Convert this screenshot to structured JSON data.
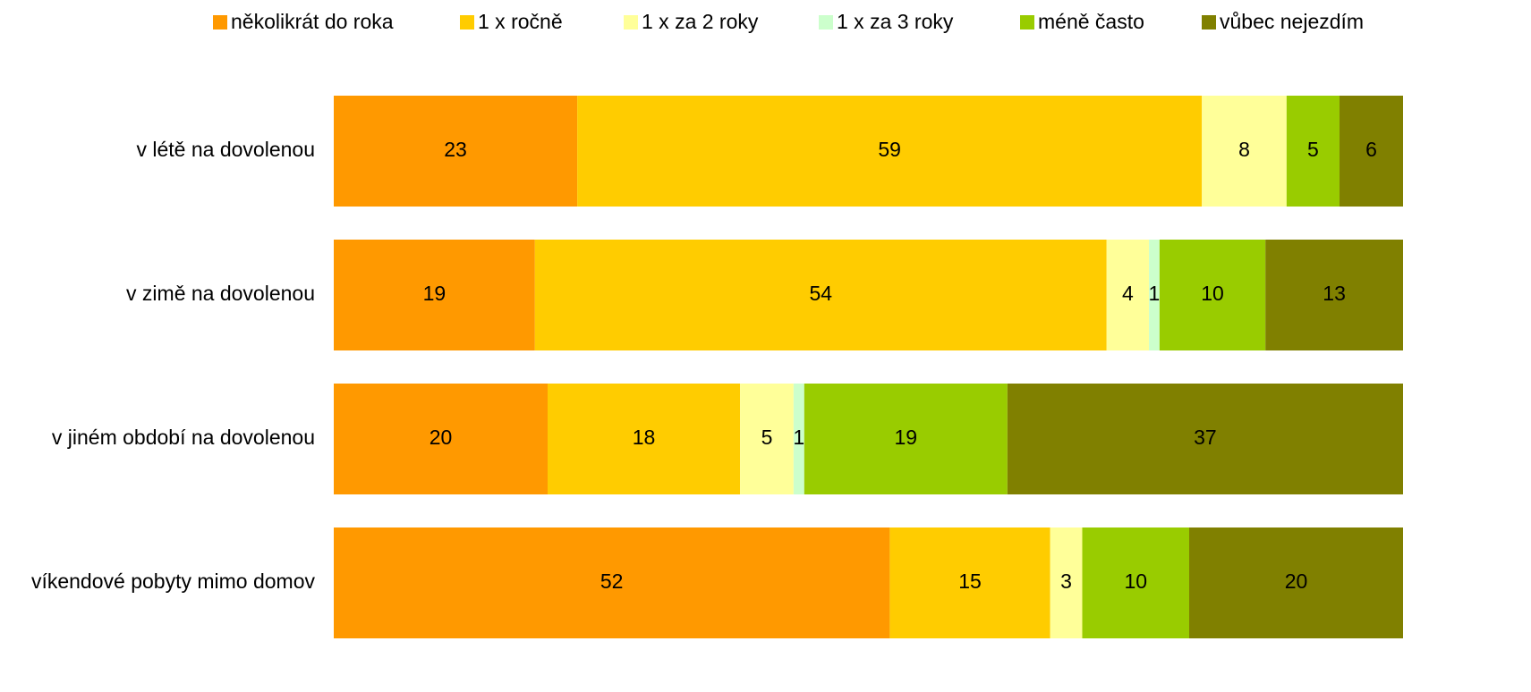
{
  "chart_data": {
    "type": "stacked-bar-horizontal",
    "categories": [
      "v létě na dovolenou",
      "v zimě na dovolenou",
      "v jiném období na dovolenou",
      "víkendové pobyty mimo domov"
    ],
    "series": [
      {
        "name": "několikrát do roka",
        "color": "#FF9900",
        "values": [
          23,
          19,
          20,
          52
        ]
      },
      {
        "name": "1 x ročně",
        "color": "#FFCC00",
        "values": [
          59,
          54,
          18,
          15
        ]
      },
      {
        "name": "1 x za 2 roky",
        "color": "#FFFF99",
        "values": [
          8,
          4,
          5,
          3
        ]
      },
      {
        "name": "1 x za 3 roky",
        "color": "#CCFFCC",
        "values": [
          null,
          1,
          1,
          null
        ]
      },
      {
        "name": "méně často",
        "color": "#99CC00",
        "values": [
          5,
          10,
          19,
          10
        ]
      },
      {
        "name": "vůbec nejezdím",
        "color": "#808000",
        "values": [
          6,
          13,
          37,
          20
        ]
      }
    ],
    "legend": "top"
  }
}
